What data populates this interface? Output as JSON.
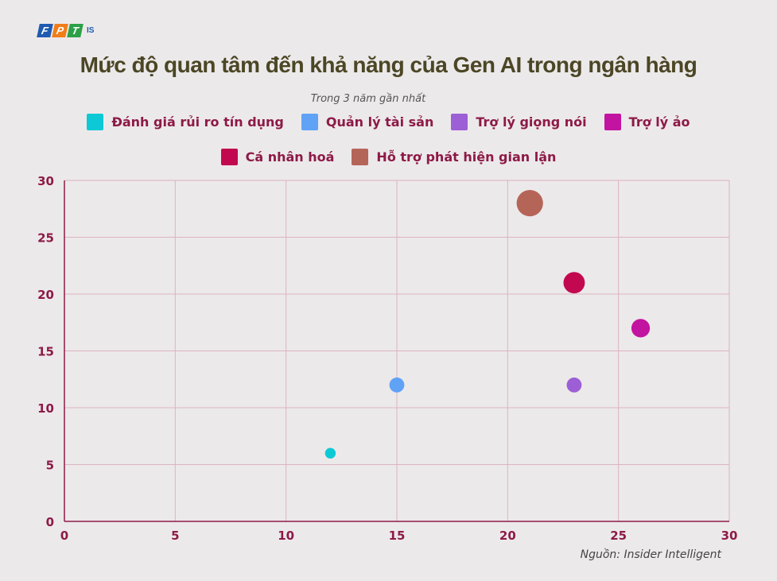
{
  "logo": {
    "letters": [
      "F",
      "P",
      "T"
    ],
    "colors": [
      "#1e5bb0",
      "#f07d1a",
      "#2ca048"
    ],
    "suffix": "IS"
  },
  "header": {
    "title": "Mức độ quan tâm đến khả năng của Gen AI trong ngân hàng",
    "subtitle": "Trong 3 năm gần nhất"
  },
  "source": "Nguồn: Insider Intelligent",
  "chart_data": {
    "type": "scatter",
    "title": "Mức độ quan tâm đến khả năng của Gen AI trong ngân hàng",
    "subtitle": "Trong 3 năm gần nhất",
    "xlabel": "",
    "ylabel": "",
    "xlim": [
      0,
      30
    ],
    "ylim": [
      0,
      30
    ],
    "xticks": [
      0,
      5,
      10,
      15,
      20,
      25,
      30
    ],
    "yticks": [
      0,
      5,
      10,
      15,
      20,
      25,
      30
    ],
    "grid": true,
    "legend_position": "top",
    "series": [
      {
        "name": "Đánh giá rủi ro tín dụng",
        "color": "#0dc9d6",
        "x": 12,
        "y": 6,
        "size": 6
      },
      {
        "name": "Quản lý tài sản",
        "color": "#5fa2f6",
        "x": 15,
        "y": 12,
        "size": 12
      },
      {
        "name": "Trợ lý giọng nói",
        "color": "#9c5fd6",
        "x": 23,
        "y": 12,
        "size": 12
      },
      {
        "name": "Trợ lý ảo",
        "color": "#c214a0",
        "x": 26,
        "y": 17,
        "size": 17
      },
      {
        "name": "Cá nhân hoá",
        "color": "#c2094f",
        "x": 23,
        "y": 21,
        "size": 21
      },
      {
        "name": "Hỗ trợ phát hiện gian lận",
        "color": "#b56558",
        "x": 21,
        "y": 28,
        "size": 28
      }
    ]
  }
}
